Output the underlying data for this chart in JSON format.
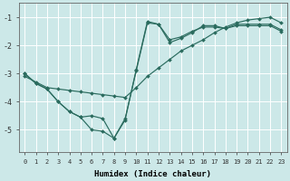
{
  "xlabel": "Humidex (Indice chaleur)",
  "bg_color": "#cce8e8",
  "grid_color": "#ffffff",
  "line_color": "#2a6b5e",
  "xlim": [
    -0.5,
    23.5
  ],
  "ylim": [
    -5.8,
    -0.5
  ],
  "yticks": [
    -5,
    -4,
    -3,
    -2,
    -1
  ],
  "xticks": [
    0,
    1,
    2,
    3,
    4,
    5,
    6,
    7,
    8,
    9,
    10,
    11,
    12,
    13,
    14,
    15,
    16,
    17,
    18,
    19,
    20,
    21,
    22,
    23
  ],
  "line1_x": [
    0,
    1,
    2,
    3,
    4,
    5,
    6,
    7,
    8,
    9,
    10,
    11,
    12,
    13,
    14,
    15,
    16,
    17,
    18,
    19,
    20,
    21,
    22,
    23
  ],
  "line1_y": [
    -3.0,
    -3.35,
    -3.55,
    -4.0,
    -4.35,
    -4.55,
    -5.0,
    -5.05,
    -5.3,
    -4.6,
    -2.9,
    -1.2,
    -1.25,
    -1.8,
    -1.7,
    -1.5,
    -1.35,
    -1.35,
    -1.4,
    -1.25,
    -1.25,
    -1.25,
    -1.25,
    -1.45
  ],
  "line2_x": [
    0,
    1,
    2,
    3,
    4,
    5,
    6,
    7,
    8,
    9,
    10,
    11,
    12,
    13,
    14,
    15,
    16,
    17,
    18,
    19,
    20,
    21,
    22,
    23
  ],
  "line2_y": [
    -3.0,
    -3.35,
    -3.55,
    -4.0,
    -4.35,
    -4.55,
    -4.5,
    -4.6,
    -5.3,
    -4.65,
    -2.85,
    -1.15,
    -1.25,
    -1.9,
    -1.75,
    -1.55,
    -1.3,
    -1.3,
    -1.4,
    -1.3,
    -1.3,
    -1.3,
    -1.3,
    -1.5
  ],
  "line3_x": [
    0,
    1,
    2,
    3,
    4,
    5,
    6,
    7,
    8,
    9,
    10,
    11,
    12,
    13,
    14,
    15,
    16,
    17,
    18,
    19,
    20,
    21,
    22,
    23
  ],
  "line3_y": [
    -3.1,
    -3.3,
    -3.5,
    -3.55,
    -3.6,
    -3.65,
    -3.7,
    -3.75,
    -3.8,
    -3.85,
    -3.5,
    -3.1,
    -2.8,
    -2.5,
    -2.2,
    -2.0,
    -1.8,
    -1.55,
    -1.35,
    -1.2,
    -1.1,
    -1.05,
    -1.0,
    -1.2
  ]
}
